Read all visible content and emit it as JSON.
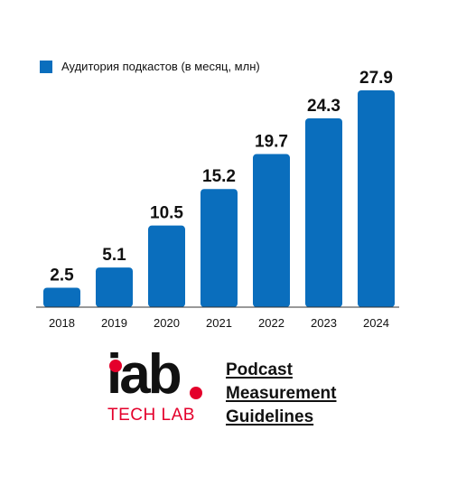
{
  "colors": {
    "bar": "#0a6ebd",
    "brand_red": "#e4002b",
    "text": "#111111",
    "axis": "#333333"
  },
  "chart_data": {
    "type": "bar",
    "categories": [
      "2018",
      "2019",
      "2020",
      "2021",
      "2022",
      "2023",
      "2024"
    ],
    "series": [
      {
        "name": "Аудитория подкастов (в месяц, млн)",
        "values": [
          2.5,
          5.1,
          10.5,
          15.2,
          19.7,
          24.3,
          27.9
        ]
      }
    ],
    "data_labels": [
      "2.5",
      "5.1",
      "10.5",
      "15.2",
      "19.7",
      "24.3",
      "27.9"
    ],
    "ylim": [
      0,
      27.9
    ],
    "grid": false,
    "legend": "top-left"
  },
  "logo": {
    "word": "iab",
    "sub": "TECH LAB"
  },
  "guidelines": {
    "line1": "Podcast",
    "line2": "Measurement",
    "line3": "Guidelines"
  }
}
